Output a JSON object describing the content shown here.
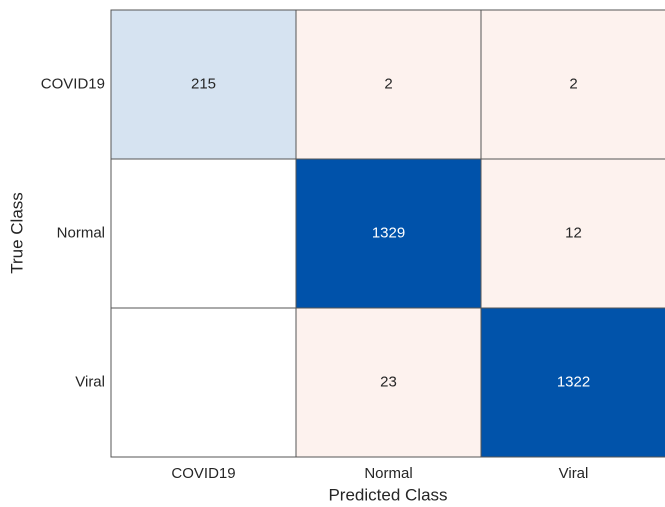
{
  "chart_data": {
    "type": "confusion_matrix",
    "xlabel": "Predicted Class",
    "ylabel": "True Class",
    "categories": [
      "COVID19",
      "Normal",
      "Viral"
    ],
    "values": [
      [
        215,
        2,
        2
      ],
      [
        null,
        1329,
        12
      ],
      [
        null,
        23,
        1322
      ]
    ],
    "diagonal_color": "#0052aa",
    "off_diagonal_color": "#fdf2ee"
  }
}
